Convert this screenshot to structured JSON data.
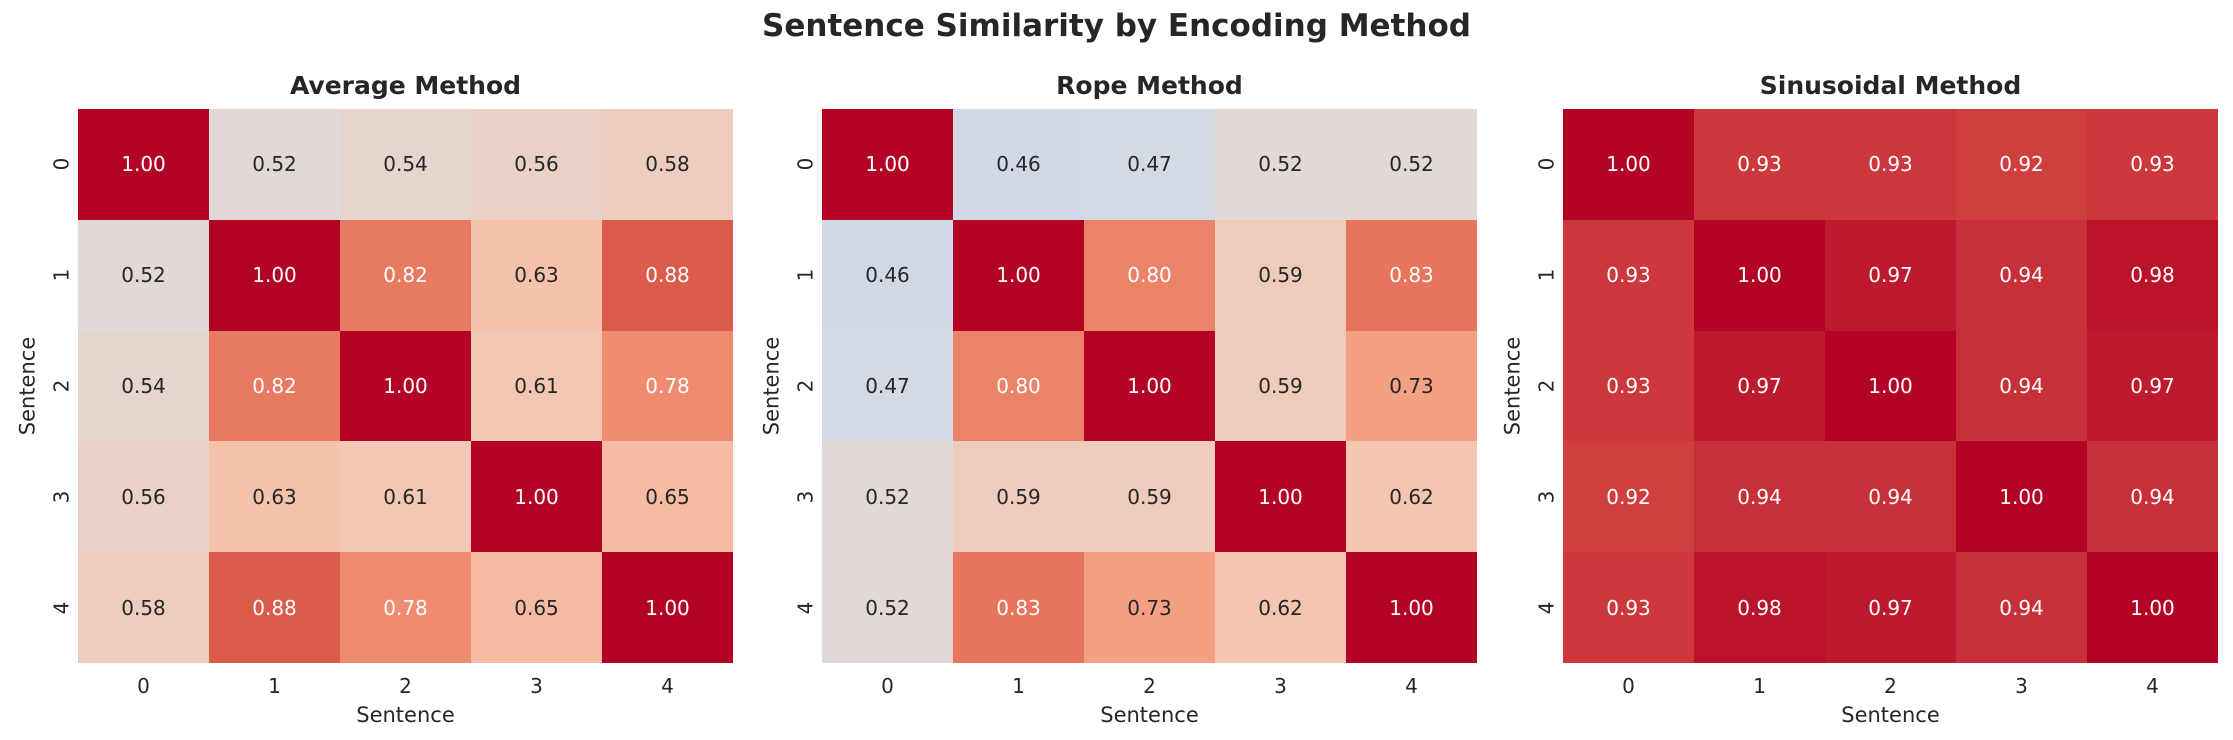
{
  "figure": {
    "title": "Sentence Similarity by Encoding Method"
  },
  "chart_data": [
    {
      "type": "heatmap",
      "title": "Average Method",
      "xlabel": "Sentence",
      "ylabel": "Sentence",
      "x": [
        "0",
        "1",
        "2",
        "3",
        "4"
      ],
      "y": [
        "0",
        "1",
        "2",
        "3",
        "4"
      ],
      "values": [
        [
          1.0,
          0.52,
          0.54,
          0.56,
          0.58
        ],
        [
          0.52,
          1.0,
          0.82,
          0.63,
          0.88
        ],
        [
          0.54,
          0.82,
          1.0,
          0.61,
          0.78
        ],
        [
          0.56,
          0.63,
          0.61,
          1.0,
          0.65
        ],
        [
          0.58,
          0.88,
          0.78,
          0.65,
          1.0
        ]
      ],
      "vmin": 0,
      "vmax": 1,
      "colormap": "coolwarm",
      "annotation_format": ".2f",
      "grid": false,
      "colorbar": false
    },
    {
      "type": "heatmap",
      "title": "Rope Method",
      "xlabel": "Sentence",
      "ylabel": "Sentence",
      "x": [
        "0",
        "1",
        "2",
        "3",
        "4"
      ],
      "y": [
        "0",
        "1",
        "2",
        "3",
        "4"
      ],
      "values": [
        [
          1.0,
          0.46,
          0.47,
          0.52,
          0.52
        ],
        [
          0.46,
          1.0,
          0.8,
          0.59,
          0.83
        ],
        [
          0.47,
          0.8,
          1.0,
          0.59,
          0.73
        ],
        [
          0.52,
          0.59,
          0.59,
          1.0,
          0.62
        ],
        [
          0.52,
          0.83,
          0.73,
          0.62,
          1.0
        ]
      ],
      "vmin": 0,
      "vmax": 1,
      "colormap": "coolwarm",
      "annotation_format": ".2f",
      "grid": false,
      "colorbar": false
    },
    {
      "type": "heatmap",
      "title": "Sinusoidal Method",
      "xlabel": "Sentence",
      "ylabel": "Sentence",
      "x": [
        "0",
        "1",
        "2",
        "3",
        "4"
      ],
      "y": [
        "0",
        "1",
        "2",
        "3",
        "4"
      ],
      "values": [
        [
          1.0,
          0.93,
          0.93,
          0.92,
          0.93
        ],
        [
          0.93,
          1.0,
          0.97,
          0.94,
          0.98
        ],
        [
          0.93,
          0.97,
          1.0,
          0.94,
          0.97
        ],
        [
          0.92,
          0.94,
          0.94,
          1.0,
          0.94
        ],
        [
          0.93,
          0.98,
          0.97,
          0.94,
          1.0
        ]
      ],
      "vmin": 0,
      "vmax": 1,
      "colormap": "coolwarm",
      "annotation_format": ".2f",
      "grid": false,
      "colorbar": false
    }
  ],
  "colors": {
    "background": "#ffffff",
    "text": "#262626",
    "annot_dark": "#262626",
    "annot_light": "#ffffff",
    "heatmap_max": "#b40426",
    "heatmap_min": "#3b4cc0",
    "colormap_stops": [
      {
        "t": 0.0,
        "color": "#3b4cc0"
      },
      {
        "t": 0.125,
        "color": "#6282ea"
      },
      {
        "t": 0.25,
        "color": "#8db0fe"
      },
      {
        "t": 0.375,
        "color": "#b8d0f9"
      },
      {
        "t": 0.5,
        "color": "#dddddd"
      },
      {
        "t": 0.625,
        "color": "#f5c4ad"
      },
      {
        "t": 0.75,
        "color": "#f49a7b"
      },
      {
        "t": 0.875,
        "color": "#de604d"
      },
      {
        "t": 1.0,
        "color": "#b40426"
      }
    ]
  }
}
